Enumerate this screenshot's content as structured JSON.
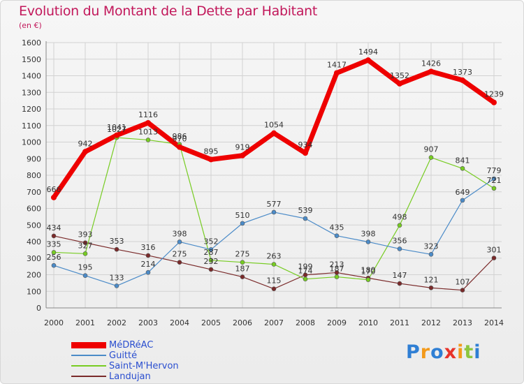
{
  "title": "Evolution du Montant de la Dette par Habitant",
  "unit_label": "(en €)",
  "chart_data": {
    "type": "line",
    "title": "Evolution du Montant de la Dette par Habitant",
    "ylabel": "(en €)",
    "x": [
      "2000",
      "2001",
      "2002",
      "2003",
      "2004",
      "2005",
      "2006",
      "2007",
      "2008",
      "2009",
      "2010",
      "2011",
      "2012",
      "2013",
      "2014"
    ],
    "ylim": [
      0,
      1600
    ],
    "yticks": [
      0,
      100,
      200,
      300,
      400,
      500,
      600,
      700,
      800,
      900,
      1000,
      1100,
      1200,
      1300,
      1400,
      1500,
      1600
    ],
    "grid": true,
    "legend_position": "bottom-left",
    "series": [
      {
        "name": "MéDRéAC",
        "color": "#ee0000",
        "values": [
          666,
          942,
          1041,
          1116,
          970,
          895,
          919,
          1054,
          934,
          1417,
          1494,
          1352,
          1426,
          1373,
          1239
        ]
      },
      {
        "name": "Guitté",
        "color": "#4b8bc8",
        "values": [
          256,
          195,
          133,
          214,
          398,
          352,
          510,
          577,
          539,
          435,
          398,
          356,
          323,
          649,
          779
        ]
      },
      {
        "name": "Saint-M'Hervon",
        "color": "#77cc22",
        "values": [
          335,
          327,
          1027,
          1013,
          986,
          287,
          275,
          263,
          174,
          187,
          170,
          498,
          907,
          841,
          721
        ]
      },
      {
        "name": "Landujan",
        "color": "#7a2a2a",
        "values": [
          434,
          393,
          353,
          316,
          275,
          232,
          187,
          115,
          199,
          213,
          180,
          147,
          121,
          107,
          301
        ]
      }
    ]
  },
  "logo": {
    "letters": [
      "P",
      "r",
      "o",
      "x",
      "i",
      "t",
      "i"
    ],
    "colors": [
      "#2f7fd4",
      "#f39a1b",
      "#2f7fd4",
      "#e8332a",
      "#f39a1b",
      "#8dc63f",
      "#2f7fd4"
    ]
  }
}
